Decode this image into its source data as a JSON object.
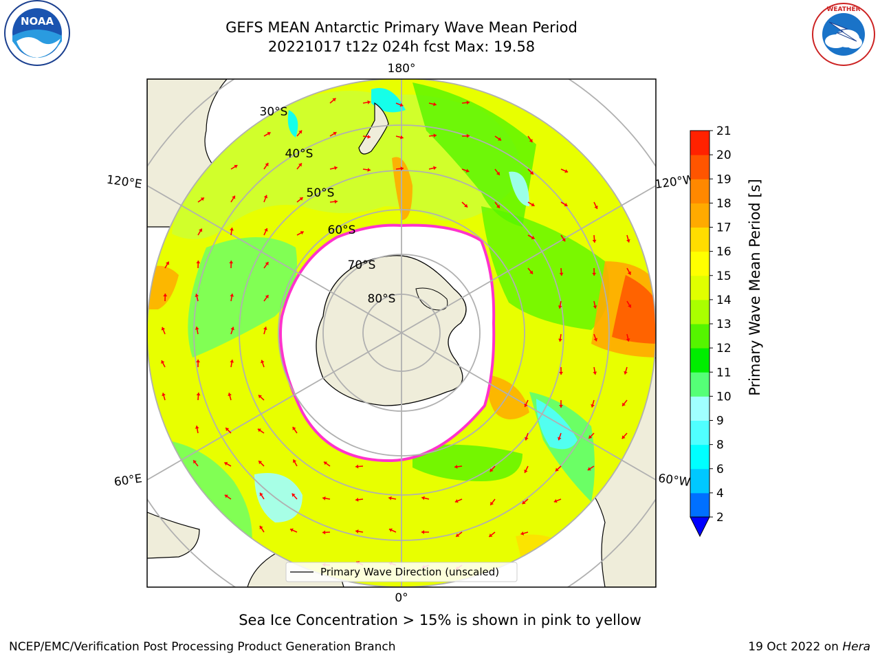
{
  "header": {
    "title_line1": "GEFS MEAN Antarctic Primary Wave Mean Period",
    "title_line2": "20221017 t12z 024h fcst   Max: 19.58"
  },
  "logos": {
    "left": {
      "icon": "noaa-logo-icon",
      "text": "NOAA",
      "ring_text": "NATIONAL OCEANIC AND ATMOSPHERIC ADMINISTRATION · U.S. DEPARTMENT OF COMMERCE"
    },
    "right": {
      "icon": "nws-logo-icon",
      "ring_text": "NATIONAL WEATHER SERVICE"
    }
  },
  "map": {
    "projection": "south-polar-stereographic",
    "longitude_labels": {
      "top": "180°",
      "bottom": "0°",
      "left_upper": "120°E",
      "left_lower": "60°E",
      "right_upper": "120°W",
      "right_lower": "60°W"
    },
    "latitude_labels": [
      "30°S",
      "40°S",
      "50°S",
      "60°S",
      "70°S",
      "80°S"
    ],
    "legend_label": "Primary Wave Direction (unscaled)",
    "arrow_color": "#ff0000",
    "ice_edge_color": "#ff33cc",
    "land_color": "#efedda",
    "grid_color": "#b0b0b0"
  },
  "colorbar": {
    "label": "Primary Wave Mean Period [s]",
    "tick_labels": [
      "2",
      "4",
      "6",
      "8",
      "9",
      "10",
      "11",
      "12",
      "13",
      "14",
      "15",
      "16",
      "17",
      "18",
      "19",
      "20",
      "21"
    ],
    "colors": [
      "#0070ff",
      "#00c8ff",
      "#00ffff",
      "#50ffff",
      "#a0ffff",
      "#55ff77",
      "#00ee00",
      "#55f500",
      "#aaff00",
      "#e0ff00",
      "#ffff00",
      "#ffdd00",
      "#ffaa00",
      "#ff8800",
      "#ff5500",
      "#ff2200"
    ],
    "under_color": "#0000ff"
  },
  "subtitle": "Sea Ice Concentration > 15% is shown in pink to yellow",
  "footer": {
    "left": "NCEP/EMC/Verification Post Processing Product Generation Branch",
    "right_date": "19 Oct 2022 on",
    "right_machine": "Hera"
  }
}
